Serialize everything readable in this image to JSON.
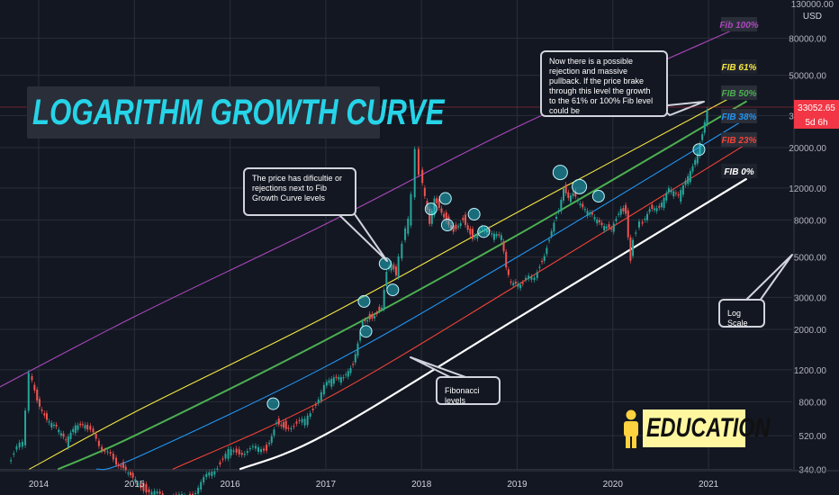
{
  "title": "LOGARITHM GROWTH CURVE",
  "currency": "USD",
  "top_price": "130000.00",
  "current_price": "33052.65",
  "countdown": "5d 6h",
  "education_label": "EDUCATION",
  "callouts": {
    "rejection": "Now there is a possible rejection and massive pullback. If the price brake through this level the growth to the 61% or 100% Fib level could be",
    "difficulty": "The price has dificultie or rejections next to Fib Growth Curve levels",
    "log_scale": "Log Scale",
    "fibonacci": "Fibonacci levels"
  },
  "colors": {
    "background": "#131722",
    "grid": "#2a2e39",
    "up": "#26a69a",
    "down": "#ef5350",
    "accent": "#26d4e8",
    "price_line": "#f23645"
  },
  "chart_data": {
    "type": "line",
    "scale": "log",
    "x_tick_labels": [
      "2014",
      "2015",
      "2016",
      "2017",
      "2018",
      "2019",
      "2020",
      "2021"
    ],
    "y_tick_labels": [
      "340.00",
      "520.00",
      "800.00",
      "1200.00",
      "2000.00",
      "3000.00",
      "5000.00",
      "8000.00",
      "12000.00",
      "20000.00",
      "30000.00",
      "50000.00",
      "80000.00"
    ],
    "ylim": [
      340,
      130000
    ],
    "fib_levels": [
      {
        "name": "Fib 100%",
        "color": "#ab47bc",
        "text_color": "#ab47bc",
        "bg": "#2a2e39",
        "points": [
          [
            2013.45,
            880
          ],
          [
            2015.0,
            2350
          ],
          [
            2017.0,
            7600
          ],
          [
            2019.0,
            26000
          ],
          [
            2021.4,
            96000
          ]
        ]
      },
      {
        "name": "FIB 61%",
        "color": "#f5e642",
        "text_color": "#f5e642",
        "bg": "#1e222d",
        "points": [
          [
            2013.9,
            340
          ],
          [
            2015.0,
            700
          ],
          [
            2017.0,
            2350
          ],
          [
            2019.0,
            8800
          ],
          [
            2021.4,
            42000
          ]
        ]
      },
      {
        "name": "FIB 50%",
        "color": "#4caf50",
        "text_color": "#4caf50",
        "bg": "#2a2e39",
        "points": [
          [
            2014.2,
            340
          ],
          [
            2015.0,
            520
          ],
          [
            2017.0,
            1750
          ],
          [
            2019.0,
            6600
          ],
          [
            2021.4,
            36000
          ]
        ]
      },
      {
        "name": "FIB 38%",
        "color": "#2196f3",
        "text_color": "#2196f3",
        "bg": "#2a2e39",
        "points": [
          [
            2014.6,
            340
          ],
          [
            2015.0,
            390
          ],
          [
            2017.0,
            1250
          ],
          [
            2019.0,
            5000
          ],
          [
            2021.4,
            29000
          ]
        ]
      },
      {
        "name": "FIB 23%",
        "color": "#f44336",
        "text_color": "#f44336",
        "bg": "#2a2e39",
        "points": [
          [
            2015.4,
            340
          ],
          [
            2017.0,
            830
          ],
          [
            2019.0,
            3500
          ],
          [
            2021.4,
            21000
          ]
        ]
      },
      {
        "name": "FIB 0%",
        "color": "#ffffff",
        "text_color": "#ffffff",
        "bg": "#1e222d",
        "points": [
          [
            2016.1,
            340
          ],
          [
            2017.0,
            530
          ],
          [
            2019.0,
            2300
          ],
          [
            2021.4,
            13500
          ]
        ]
      }
    ],
    "price_series": {
      "name": "",
      "points": [
        [
          2013.7,
          380
        ],
        [
          2013.85,
          480
        ],
        [
          2013.92,
          1150
        ],
        [
          2014.0,
          800
        ],
        [
          2014.1,
          620
        ],
        [
          2014.2,
          560
        ],
        [
          2014.3,
          470
        ],
        [
          2014.4,
          580
        ],
        [
          2014.5,
          600
        ],
        [
          2014.65,
          470
        ],
        [
          2014.8,
          380
        ],
        [
          2014.9,
          350
        ],
        [
          2015.0,
          300
        ],
        [
          2015.2,
          250
        ],
        [
          2015.4,
          235
        ],
        [
          2015.6,
          240
        ],
        [
          2015.8,
          320
        ],
        [
          2016.0,
          420
        ],
        [
          2016.2,
          430
        ],
        [
          2016.4,
          450
        ],
        [
          2016.5,
          640
        ],
        [
          2016.6,
          590
        ],
        [
          2016.8,
          620
        ],
        [
          2017.0,
          960
        ],
        [
          2017.1,
          1050
        ],
        [
          2017.2,
          1080
        ],
        [
          2017.3,
          1300
        ],
        [
          2017.4,
          2300
        ],
        [
          2017.5,
          2400
        ],
        [
          2017.6,
          2700
        ],
        [
          2017.65,
          4200
        ],
        [
          2017.7,
          4600
        ],
        [
          2017.75,
          3900
        ],
        [
          2017.82,
          6200
        ],
        [
          2017.88,
          7800
        ],
        [
          2017.92,
          11000
        ],
        [
          2017.96,
          19500
        ],
        [
          2018.0,
          14500
        ],
        [
          2018.05,
          10500
        ],
        [
          2018.1,
          7500
        ],
        [
          2018.15,
          10500
        ],
        [
          2018.25,
          8500
        ],
        [
          2018.35,
          7200
        ],
        [
          2018.45,
          8300
        ],
        [
          2018.55,
          6400
        ],
        [
          2018.65,
          7200
        ],
        [
          2018.75,
          6500
        ],
        [
          2018.85,
          6300
        ],
        [
          2018.9,
          4200
        ],
        [
          2018.95,
          3500
        ],
        [
          2019.05,
          3500
        ],
        [
          2019.2,
          4000
        ],
        [
          2019.3,
          5300
        ],
        [
          2019.4,
          8000
        ],
        [
          2019.45,
          9200
        ],
        [
          2019.5,
          12000
        ],
        [
          2019.55,
          10500
        ],
        [
          2019.6,
          11000
        ],
        [
          2019.7,
          9000
        ],
        [
          2019.8,
          8200
        ],
        [
          2019.9,
          7300
        ],
        [
          2020.0,
          7200
        ],
        [
          2020.1,
          9500
        ],
        [
          2020.15,
          9000
        ],
        [
          2020.2,
          5000
        ],
        [
          2020.23,
          6500
        ],
        [
          2020.3,
          7500
        ],
        [
          2020.4,
          9300
        ],
        [
          2020.5,
          9200
        ],
        [
          2020.6,
          11500
        ],
        [
          2020.7,
          10500
        ],
        [
          2020.8,
          13500
        ],
        [
          2020.85,
          15500
        ],
        [
          2020.9,
          18500
        ],
        [
          2020.95,
          24000
        ],
        [
          2021.0,
          33052.65
        ]
      ]
    },
    "rejection_markers": [
      [
        2016.45,
        780
      ],
      [
        2017.4,
        2850
      ],
      [
        2017.42,
        1950
      ],
      [
        2017.62,
        4600
      ],
      [
        2017.7,
        3300
      ],
      [
        2018.1,
        9200
      ],
      [
        2018.25,
        10500
      ],
      [
        2018.27,
        7500
      ],
      [
        2018.55,
        8600
      ],
      [
        2018.65,
        6900
      ],
      [
        2019.45,
        14600
      ],
      [
        2019.65,
        12200
      ],
      [
        2019.85,
        10800
      ],
      [
        2020.9,
        19500
      ]
    ]
  }
}
